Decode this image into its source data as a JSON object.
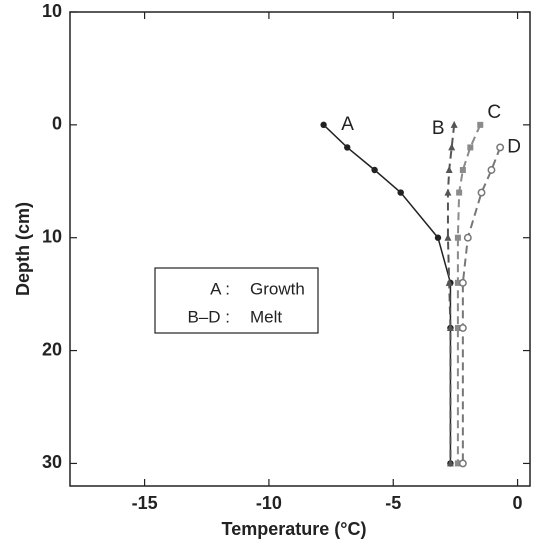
{
  "chart_data": {
    "type": "line",
    "x_label": "Temperature (°C)",
    "y_label": "Depth (cm)",
    "xlim": [
      -18,
      0.5
    ],
    "xticks": [
      -15,
      -10,
      -5,
      0
    ],
    "ylim": [
      -10,
      32
    ],
    "y_inverted": true,
    "yticks": [
      {
        "value": -10,
        "label": "10"
      },
      0,
      10,
      20,
      30
    ],
    "series": [
      {
        "name": "A",
        "color": "#222222",
        "dashed": false,
        "marker": "dot",
        "x": [
          -7.8,
          -6.85,
          -5.75,
          -4.7,
          -3.2,
          -2.7,
          -2.7,
          -2.7
        ],
        "values": [
          0,
          2,
          4,
          6,
          10,
          14,
          18,
          30
        ]
      },
      {
        "name": "B",
        "color": "#555555",
        "dashed": true,
        "marker": "triangle",
        "x": [
          -2.55,
          -2.65,
          -2.75,
          -2.8,
          -2.8,
          -2.75,
          -2.7,
          -2.7
        ],
        "values": [
          0,
          2,
          4,
          6,
          10,
          14,
          18,
          30
        ]
      },
      {
        "name": "C",
        "color": "#8a8a8a",
        "dashed": true,
        "marker": "square",
        "x": [
          -1.5,
          -1.9,
          -2.2,
          -2.35,
          -2.4,
          -2.4,
          -2.4,
          -2.4
        ],
        "values": [
          0,
          2,
          4,
          6,
          10,
          14,
          18,
          30
        ]
      },
      {
        "name": "D",
        "color": "#777777",
        "dashed": true,
        "marker": "open-circle",
        "x": [
          -0.7,
          -1.05,
          -1.45,
          -2.0,
          -2.2,
          -2.2,
          -2.2
        ],
        "values": [
          2,
          4,
          6,
          10,
          14,
          18,
          30
        ]
      }
    ],
    "legend": [
      {
        "key": "A :",
        "text": "Growth"
      },
      {
        "key": "B–D :",
        "text": "Melt"
      }
    ]
  }
}
